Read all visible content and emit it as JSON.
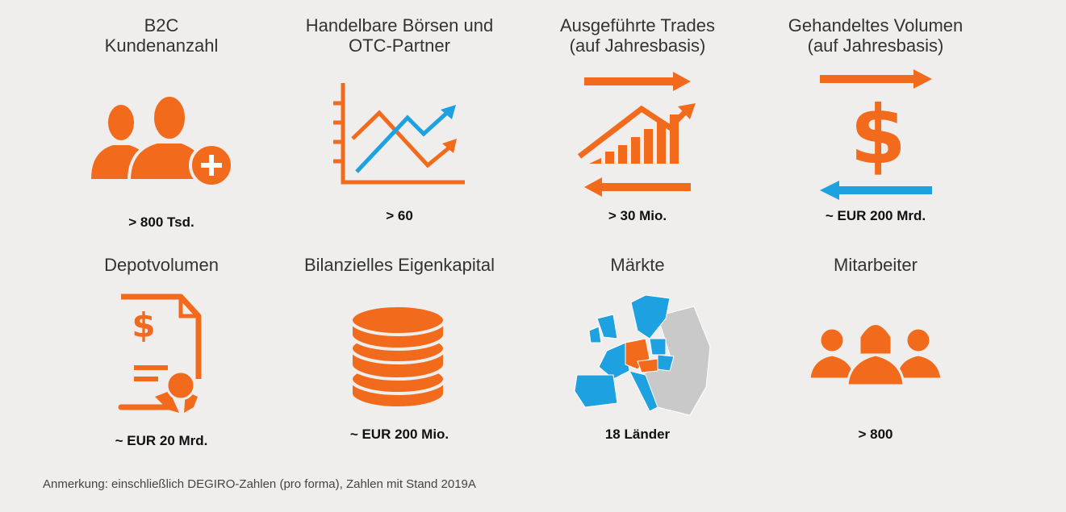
{
  "tiles": [
    {
      "title": [
        "B2C",
        "Kundenanzahl"
      ],
      "value": "> 800 Tsd."
    },
    {
      "title": [
        "Handelbare Börsen und",
        "OTC-Partner"
      ],
      "value": "> 60"
    },
    {
      "title": [
        "Ausgeführte Trades",
        "(auf Jahresbasis)"
      ],
      "value": "> 30 Mio."
    },
    {
      "title": [
        "Gehandeltes Volumen",
        "(auf Jahresbasis)"
      ],
      "value": "~ EUR 200 Mrd."
    },
    {
      "title": [
        "Depotvolumen"
      ],
      "value": "~ EUR 20 Mrd."
    },
    {
      "title": [
        "Bilanzielles Eigenkapital"
      ],
      "value": "~ EUR 200 Mio."
    },
    {
      "title": [
        "Märkte"
      ],
      "value": "18 Länder"
    },
    {
      "title": [
        "Mitarbeiter"
      ],
      "value": "> 800"
    }
  ],
  "note": "Anmerkung: einschließlich DEGIRO-Zahlen (pro forma), Zahlen mit Stand 2019A"
}
